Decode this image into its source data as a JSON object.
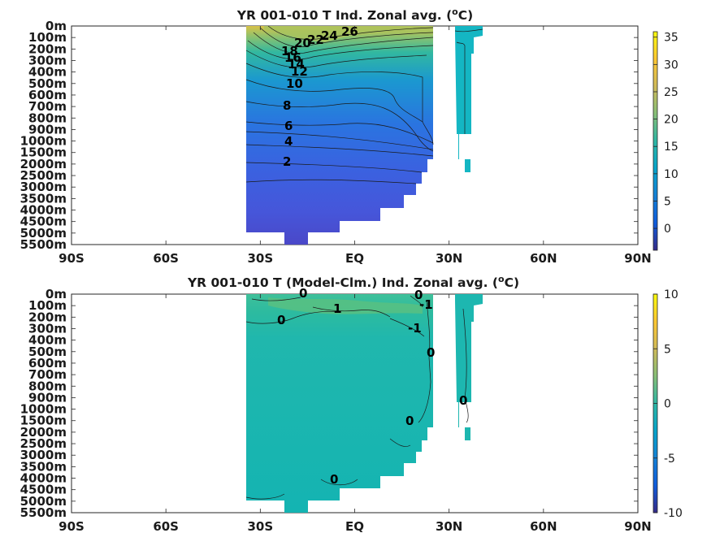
{
  "chart_data": [
    {
      "type": "heatmap",
      "title": "YR 001-010 T Ind. Zonal avg. (",
      "title_sup": "o",
      "title_end": "C)",
      "x_ticks": [
        "90S",
        "60S",
        "30S",
        "EQ",
        "30N",
        "60N",
        "90N"
      ],
      "x_values": [
        -90,
        -60,
        -30,
        0,
        30,
        60,
        90
      ],
      "y_ticks": [
        "0m",
        "100m",
        "200m",
        "300m",
        "400m",
        "500m",
        "600m",
        "700m",
        "800m",
        "900m",
        "1000m",
        "1500m",
        "2000m",
        "2500m",
        "3000m",
        "3500m",
        "4000m",
        "4500m",
        "5000m",
        "5500m"
      ],
      "colorbar": {
        "ticks": [
          "35",
          "30",
          "25",
          "20",
          "15",
          "10",
          "5",
          "0"
        ],
        "tick_values": [
          35,
          30,
          25,
          20,
          15,
          10,
          5,
          0
        ],
        "range": [
          -4,
          36
        ]
      },
      "contour_labels": [
        "26",
        "24",
        "22",
        "20",
        "18",
        "16",
        "14",
        "12",
        "10",
        "8",
        "6",
        "4",
        "2"
      ],
      "contour_levels": [
        26,
        24,
        22,
        20,
        18,
        16,
        14,
        12,
        10,
        8,
        6,
        4,
        2
      ]
    },
    {
      "type": "heatmap",
      "title": "YR 001-010 T (Model-Clm.) Ind. Zonal avg. (",
      "title_sup": "o",
      "title_end": "C)",
      "x_ticks": [
        "90S",
        "60S",
        "30S",
        "EQ",
        "30N",
        "60N",
        "90N"
      ],
      "x_values": [
        -90,
        -60,
        -30,
        0,
        30,
        60,
        90
      ],
      "y_ticks": [
        "0m",
        "100m",
        "200m",
        "300m",
        "400m",
        "500m",
        "600m",
        "700m",
        "800m",
        "900m",
        "1000m",
        "1500m",
        "2000m",
        "2500m",
        "3000m",
        "3500m",
        "4000m",
        "4500m",
        "5000m",
        "5500m"
      ],
      "colorbar": {
        "ticks": [
          "10",
          "5",
          "0",
          "-5",
          "-10"
        ],
        "tick_values": [
          10,
          5,
          0,
          -5,
          -10
        ],
        "range": [
          -10,
          10
        ]
      },
      "contour_labels": [
        "0",
        "0",
        "-1",
        "1",
        "-1",
        "0",
        "0",
        "0",
        "0",
        "0"
      ]
    }
  ]
}
